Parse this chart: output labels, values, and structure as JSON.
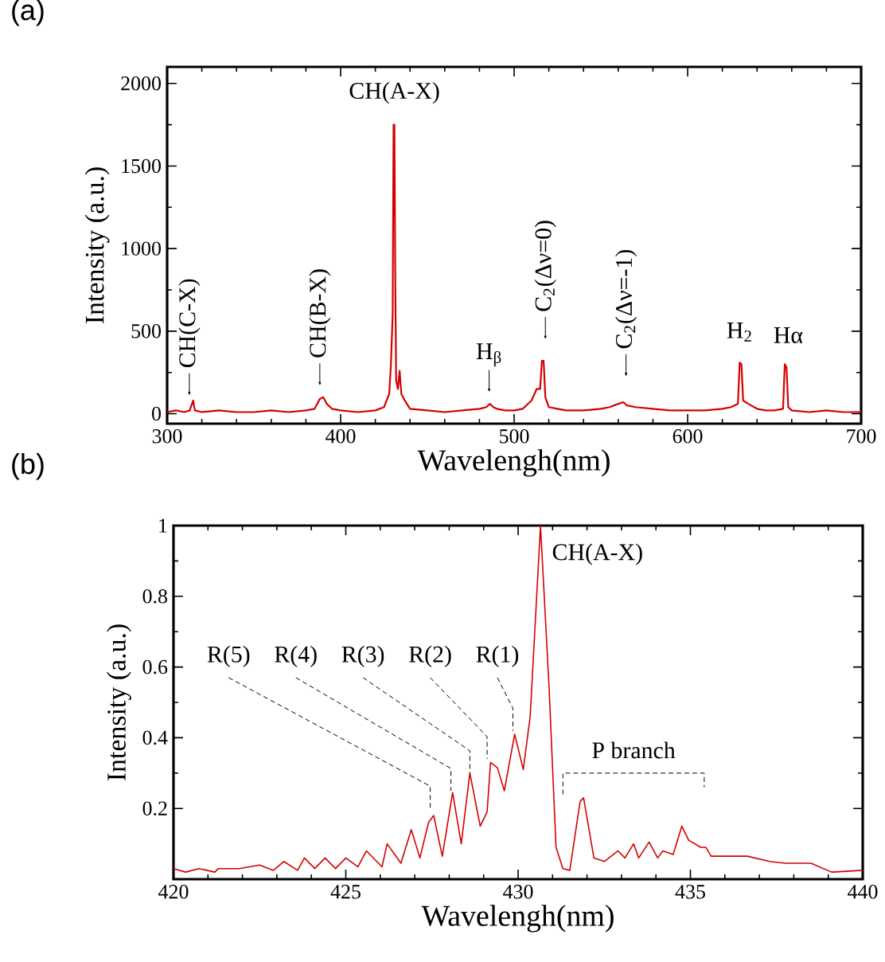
{
  "chart_data": [
    {
      "type": "line",
      "title": "(a)",
      "xlabel": "Wavelengh(nm)",
      "ylabel": "Intensity (a.u.)",
      "color": "#d40000",
      "x": [
        300,
        305,
        310,
        313,
        315,
        316,
        320,
        330,
        340,
        350,
        360,
        370,
        380,
        385,
        388,
        390,
        392,
        395,
        400,
        410,
        420,
        425,
        428,
        429,
        430,
        430.5,
        431,
        431.5,
        432,
        433,
        434,
        435,
        437,
        440,
        450,
        460,
        470,
        480,
        484,
        486,
        488,
        490,
        495,
        500,
        505,
        510,
        513,
        515,
        516,
        517,
        518,
        520,
        525,
        530,
        540,
        550,
        555,
        560,
        563,
        565,
        570,
        580,
        590,
        600,
        610,
        620,
        625,
        629,
        630,
        631,
        632,
        635,
        640,
        645,
        650,
        655,
        656,
        657,
        658,
        660,
        670,
        680,
        690,
        700
      ],
      "values": [
        10,
        20,
        10,
        20,
        80,
        20,
        10,
        20,
        10,
        10,
        20,
        10,
        20,
        30,
        90,
        100,
        60,
        30,
        20,
        10,
        20,
        40,
        120,
        300,
        600,
        1750,
        1750,
        800,
        200,
        150,
        260,
        120,
        80,
        30,
        20,
        10,
        20,
        30,
        40,
        60,
        40,
        30,
        20,
        20,
        30,
        80,
        150,
        150,
        320,
        320,
        100,
        40,
        30,
        20,
        20,
        30,
        40,
        60,
        70,
        50,
        40,
        30,
        20,
        20,
        20,
        30,
        40,
        60,
        310,
        300,
        80,
        60,
        30,
        20,
        20,
        30,
        300,
        280,
        40,
        20,
        10,
        20,
        10,
        10
      ],
      "xlim": [
        300,
        700
      ],
      "ylim": [
        -60,
        2100
      ],
      "xticks": [
        300,
        400,
        500,
        600,
        700
      ],
      "yticks": [
        0,
        500,
        1000,
        1500,
        2000
      ],
      "annotations": [
        {
          "text": "CH(C-X)",
          "x": 312.8,
          "y": 110
        },
        {
          "text": "CH(B-X)",
          "x": 388,
          "y": 170
        },
        {
          "text": "CH(A-X)",
          "x": 431,
          "y": 1750
        },
        {
          "text": "H$_{β}$",
          "x": 485.6,
          "y": 130
        },
        {
          "text": "C$_{2}$(Δν=0)",
          "x": 518,
          "y": 450
        },
        {
          "text": "C$_{2}$(Δν=-1)",
          "x": 564.5,
          "y": 225
        },
        {
          "text": "H$_{2}$",
          "x": 630,
          "y": 310
        },
        {
          "text": "Hα",
          "x": 658,
          "y": 300
        }
      ]
    },
    {
      "type": "line",
      "title": "(b)",
      "xlabel": "Wavelengh(nm)",
      "ylabel": "Intensity (a.u.)",
      "color": "#d40000",
      "x": [
        420,
        420.35,
        420.74,
        421.2,
        421.3,
        421.9,
        422.5,
        422.9,
        423.2,
        423.6,
        423.8,
        424.1,
        424.4,
        424.7,
        425.0,
        425.35,
        425.6,
        426.05,
        426.2,
        426.6,
        426.9,
        427.15,
        427.4,
        427.55,
        427.8,
        428.1,
        428.35,
        428.6,
        428.9,
        429.1,
        429.2,
        429.4,
        429.6,
        429.9,
        430.15,
        430.35,
        430.65,
        430.9,
        431.1,
        431.3,
        431.5,
        431.8,
        431.9,
        432.2,
        432.5,
        432.9,
        433.1,
        433.35,
        433.5,
        433.8,
        434.05,
        434.2,
        434.5,
        434.75,
        434.95,
        435.3,
        435.45,
        435.6,
        436.1,
        436.65,
        437.3,
        437.75,
        438.5,
        439.1,
        440
      ],
      "values": [
        0.03,
        0.02,
        0.03,
        0.02,
        0.03,
        0.03,
        0.04,
        0.025,
        0.05,
        0.025,
        0.06,
        0.03,
        0.06,
        0.03,
        0.06,
        0.035,
        0.08,
        0.035,
        0.1,
        0.045,
        0.14,
        0.06,
        0.16,
        0.18,
        0.065,
        0.245,
        0.1,
        0.3,
        0.15,
        0.19,
        0.33,
        0.315,
        0.25,
        0.41,
        0.31,
        0.46,
        1.0,
        0.54,
        0.09,
        0.03,
        0.025,
        0.22,
        0.23,
        0.06,
        0.05,
        0.08,
        0.06,
        0.1,
        0.06,
        0.105,
        0.06,
        0.08,
        0.07,
        0.15,
        0.11,
        0.09,
        0.09,
        0.065,
        0.065,
        0.065,
        0.05,
        0.045,
        0.045,
        0.02,
        0.025
      ],
      "xlim": [
        420,
        440
      ],
      "ylim": [
        0,
        1
      ],
      "xticks": [
        420,
        425,
        430,
        435,
        440
      ],
      "yticks": [
        0.2,
        0.4,
        0.6,
        0.8,
        1
      ],
      "annotations": [
        {
          "text": "R(5)",
          "x": 427.45,
          "y": 0.2
        },
        {
          "text": "R(4)",
          "x": 428.05,
          "y": 0.25
        },
        {
          "text": "R(3)",
          "x": 428.6,
          "y": 0.3
        },
        {
          "text": "R(2)",
          "x": 429.1,
          "y": 0.34
        },
        {
          "text": "R(1)",
          "x": 429.85,
          "y": 0.42
        },
        {
          "text": "CH(A-X)",
          "x": 430.65,
          "y": 1.0
        },
        "P branch"
      ]
    }
  ]
}
